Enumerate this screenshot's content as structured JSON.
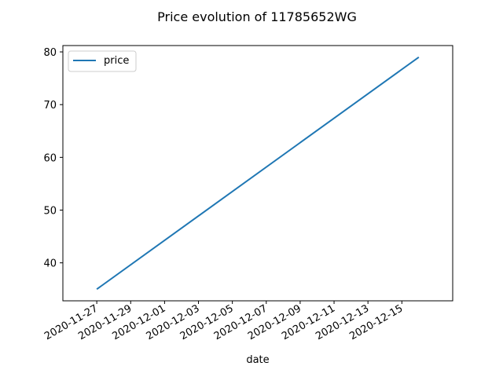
{
  "chart_data": {
    "type": "line",
    "title": "Price evolution of 11785652WG",
    "xlabel": "date",
    "ylabel": "",
    "x": [
      "2020-11-27",
      "2020-12-16"
    ],
    "series": [
      {
        "name": "price",
        "color": "#1f77b4",
        "values": [
          35,
          79
        ]
      }
    ],
    "xlim": [
      "2020-11-25",
      "2020-12-18"
    ],
    "ylim": [
      32.8,
      81.2
    ],
    "xticks": [
      "2020-11-27",
      "2020-11-29",
      "2020-12-01",
      "2020-12-03",
      "2020-12-05",
      "2020-12-07",
      "2020-12-09",
      "2020-12-11",
      "2020-12-13",
      "2020-12-15"
    ],
    "yticks": [
      40,
      50,
      60,
      70,
      80
    ],
    "legend_position": "upper-left",
    "grid": false
  }
}
